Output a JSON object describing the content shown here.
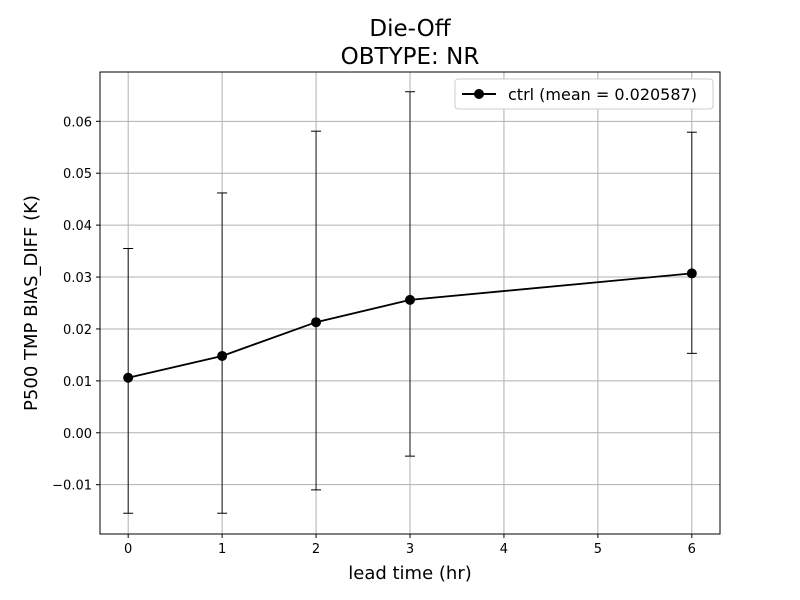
{
  "chart_data": {
    "type": "line",
    "title_line1": "Die-Off",
    "title_line2": "OBTYPE: NR",
    "xlabel": "lead time (hr)",
    "ylabel": "P500 TMP BIAS_DIFF (K)",
    "xlim": [
      -0.3,
      6.3
    ],
    "ylim": [
      -0.0195,
      0.0695
    ],
    "xticks": [
      0,
      1,
      2,
      3,
      4,
      5,
      6
    ],
    "xtick_labels": [
      "0",
      "1",
      "2",
      "3",
      "4",
      "5",
      "6"
    ],
    "yticks": [
      -0.01,
      0.0,
      0.01,
      0.02,
      0.03,
      0.04,
      0.05,
      0.06
    ],
    "ytick_labels": [
      "−0.01",
      "0.00",
      "0.01",
      "0.02",
      "0.03",
      "0.04",
      "0.05",
      "0.06"
    ],
    "grid": true,
    "legend_position": "top-right",
    "series": [
      {
        "name": "ctrl (mean = 0.020587)",
        "color": "#000000",
        "marker": "circle",
        "x": [
          0,
          1,
          2,
          3,
          6
        ],
        "y": [
          0.0106,
          0.0148,
          0.0213,
          0.0256,
          0.0307
        ],
        "error_low": [
          -0.0155,
          -0.0155,
          -0.011,
          -0.0045,
          0.0153
        ],
        "error_high": [
          0.0355,
          0.0462,
          0.0581,
          0.0657,
          0.0579
        ]
      }
    ]
  }
}
